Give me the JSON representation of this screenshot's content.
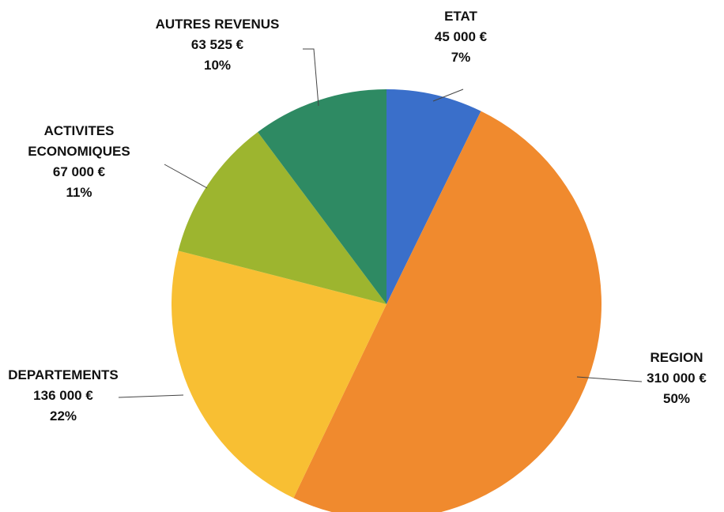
{
  "chart_data": {
    "type": "pie",
    "categories": [
      "ETAT",
      "REGION",
      "DEPARTEMENTS",
      "ACTIVITES ECONOMIQUES",
      "AUTRES REVENUS"
    ],
    "values": [
      45000,
      310000,
      136000,
      67000,
      63525
    ],
    "value_labels": [
      "45 000 €",
      "310 000 €",
      "136 000 €",
      "67 000 €",
      "63 525 €"
    ],
    "share_labels": [
      "7%",
      "50%",
      "22%",
      "11%",
      "10%"
    ],
    "colors": [
      "#3a6fca",
      "#f08a2e",
      "#f8bf33",
      "#9db52f",
      "#2e8a63"
    ]
  }
}
